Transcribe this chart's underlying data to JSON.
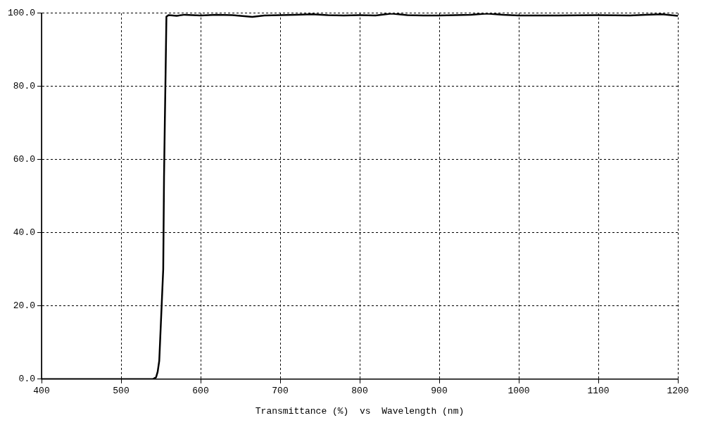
{
  "chart_data": {
    "type": "line",
    "xlabel": "Transmittance (%)  vs  Wavelength (nm)",
    "xlim": [
      400,
      1200
    ],
    "xticks": [
      400,
      500,
      600,
      700,
      800,
      900,
      1000,
      1100,
      1200
    ],
    "ylim": [
      0,
      100
    ],
    "yticks": [
      {
        "value": 0,
        "label": "0.0"
      },
      {
        "value": 20,
        "label": "20.0"
      },
      {
        "value": 40,
        "label": "40.0"
      },
      {
        "value": 60,
        "label": "60.0"
      },
      {
        "value": 80,
        "label": "80.0"
      },
      {
        "value": 100,
        "label": "100.0"
      }
    ],
    "grid": true,
    "legend": false,
    "marker": "none",
    "line_style": "solid",
    "series": [
      {
        "color": "#000000",
        "x": [
          400,
          450,
          500,
          540,
          544,
          546,
          548,
          550,
          552,
          553,
          554,
          555,
          556,
          557,
          560,
          570,
          580,
          600,
          620,
          640,
          655,
          665,
          680,
          700,
          720,
          740,
          760,
          780,
          800,
          820,
          840,
          860,
          880,
          900,
          920,
          940,
          960,
          980,
          1000,
          1050,
          1100,
          1140,
          1160,
          1180,
          1200
        ],
        "values": [
          0,
          0,
          0,
          0,
          0.5,
          2,
          5,
          15,
          25,
          30,
          55,
          70,
          84,
          99.1,
          99.5,
          99.3,
          99.6,
          99.4,
          99.6,
          99.5,
          99.2,
          99.0,
          99.4,
          99.5,
          99.6,
          99.7,
          99.5,
          99.4,
          99.5,
          99.4,
          99.9,
          99.5,
          99.4,
          99.4,
          99.5,
          99.6,
          99.9,
          99.6,
          99.4,
          99.4,
          99.5,
          99.4,
          99.6,
          99.7,
          99.3
        ]
      }
    ]
  }
}
